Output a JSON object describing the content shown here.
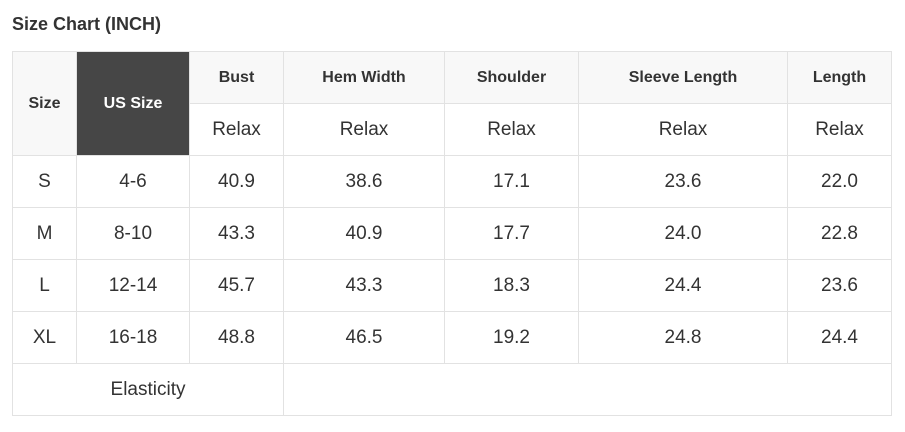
{
  "title": "Size Chart (INCH)",
  "headers": {
    "size": "Size",
    "us_size": "US Size",
    "columns": [
      "Bust",
      "Hem Width",
      "Shoulder",
      "Sleeve Length",
      "Length"
    ],
    "fit": [
      "Relax",
      "Relax",
      "Relax",
      "Relax",
      "Relax"
    ]
  },
  "rows": [
    {
      "size": "S",
      "us": "4-6",
      "values": [
        "40.9",
        "38.6",
        "17.1",
        "23.6",
        "22.0"
      ]
    },
    {
      "size": "M",
      "us": "8-10",
      "values": [
        "43.3",
        "40.9",
        "17.7",
        "24.0",
        "22.8"
      ]
    },
    {
      "size": "L",
      "us": "12-14",
      "values": [
        "45.7",
        "43.3",
        "18.3",
        "24.4",
        "23.6"
      ]
    },
    {
      "size": "XL",
      "us": "16-18",
      "values": [
        "48.8",
        "46.5",
        "19.2",
        "24.8",
        "24.4"
      ]
    }
  ],
  "elasticity": {
    "label": "Elasticity",
    "value": ""
  },
  "colors": {
    "us_size_header_bg": "#464646",
    "header_bg": "#f8f8f8",
    "border": "#e2e2e2"
  }
}
